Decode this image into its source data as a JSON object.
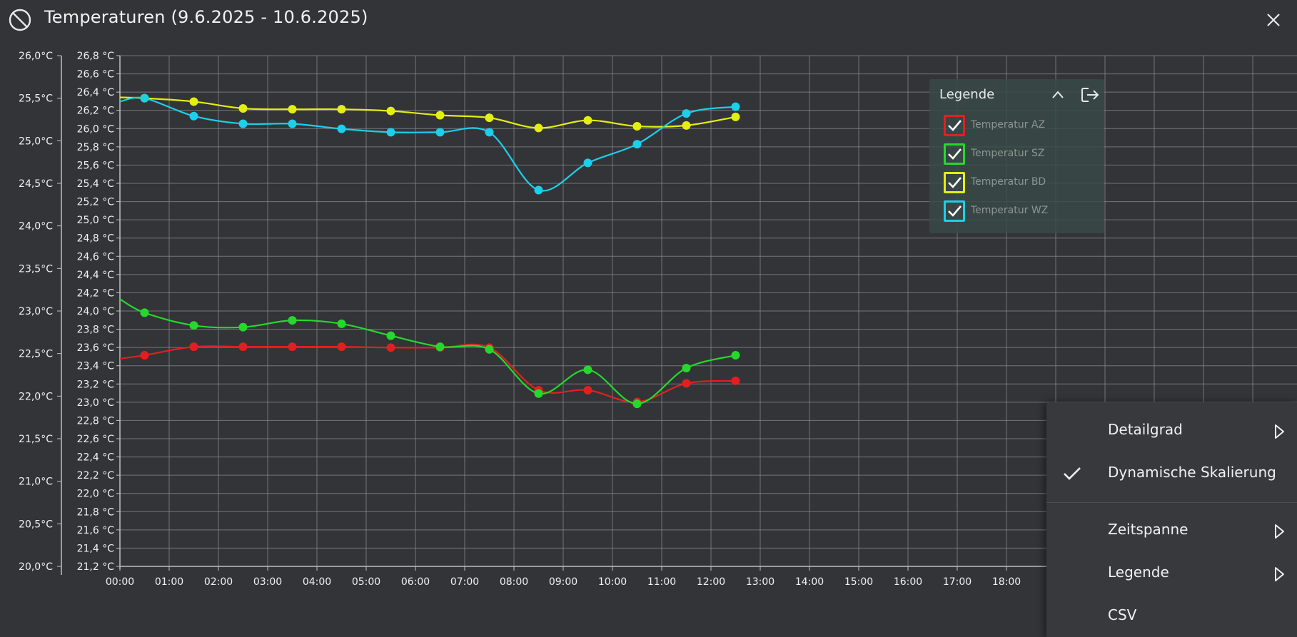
{
  "window": {
    "title": "Temperaturen (9.6.2025 - 10.6.2025)",
    "icons": {
      "left": "ban-icon",
      "close": "close-icon"
    }
  },
  "legend": {
    "title": "Legende",
    "collapse_icon": "chevron-up-icon",
    "export_icon": "export-icon",
    "items": [
      {
        "label": "Temperatur AZ",
        "color": "#e02020",
        "checked": true
      },
      {
        "label": "Temperatur SZ",
        "color": "#25d92c",
        "checked": true
      },
      {
        "label": "Temperatur BD",
        "color": "#e3ee12",
        "checked": true
      },
      {
        "label": "Temperatur WZ",
        "color": "#1ccfeb",
        "checked": true
      }
    ]
  },
  "menu": {
    "items": [
      {
        "label": "Detailgrad",
        "submenu": true,
        "checked": false
      },
      {
        "label": "Dynamische Skalierung",
        "submenu": false,
        "checked": true
      },
      {
        "label": "Zeitspanne",
        "submenu": true,
        "checked": false
      },
      {
        "label": "Legende",
        "submenu": true,
        "checked": false
      },
      {
        "label": "CSV",
        "submenu": false,
        "checked": false
      }
    ]
  },
  "chart_data": {
    "type": "line",
    "x_labels": [
      "00:00",
      "01:00",
      "02:00",
      "03:00",
      "04:00",
      "05:00",
      "06:00",
      "07:00",
      "08:00",
      "09:00",
      "10:00",
      "11:00",
      "12:00",
      "13:00",
      "14:00",
      "15:00",
      "16:00",
      "17:00",
      "18:00"
    ],
    "y_left": {
      "min": 20.0,
      "max": 26.0,
      "step": 0.5,
      "labels": [
        "26,0°C",
        "25,5°C",
        "25,0°C",
        "24,5°C",
        "24,0°C",
        "23,5°C",
        "23,0°C",
        "22,5°C",
        "22,0°C",
        "21,5°C",
        "21,0°C",
        "20,5°C",
        "20,0°C"
      ]
    },
    "y_right": {
      "min": 21.2,
      "max": 26.8,
      "step": 0.2,
      "labels": [
        "26,8 °C",
        "26,6 °C",
        "26,4 °C",
        "26,2 °C",
        "26,0 °C",
        "25,8 °C",
        "25,6 °C",
        "25,4 °C",
        "25,2 °C",
        "25,0 °C",
        "24,8 °C",
        "24,6 °C",
        "24,4 °C",
        "24,2 °C",
        "24,0 °C",
        "23,8 °C",
        "23,6 °C",
        "23,4 °C",
        "23,2 °C",
        "23,0 °C",
        "22,8 °C",
        "22,6 °C",
        "22,4 °C",
        "22,2 °C",
        "22,0 °C",
        "21,8 °C",
        "21,6 °C",
        "21,4 °C",
        "21,2 °C"
      ]
    },
    "grid": true,
    "legend_position": "top-right",
    "series": [
      {
        "name": "Temperatur AZ",
        "color": "#e02020",
        "axis": "left",
        "start": 22.44,
        "x": [
          0.5,
          1.5,
          2.5,
          3.5,
          4.5,
          5.5,
          6.5,
          7.5,
          8.5,
          9.5,
          10.5,
          11.5,
          12.5
        ],
        "y": [
          22.48,
          22.58,
          22.58,
          22.58,
          22.58,
          22.57,
          22.57,
          22.57,
          22.07,
          22.07,
          21.93,
          22.15,
          22.18
        ]
      },
      {
        "name": "Temperatur SZ",
        "color": "#25d92c",
        "axis": "left",
        "start": 23.14,
        "x": [
          0.5,
          1.5,
          2.5,
          3.5,
          4.5,
          5.5,
          6.5,
          7.5,
          8.5,
          9.5,
          10.5,
          11.5,
          12.5
        ],
        "y": [
          22.98,
          22.83,
          22.81,
          22.89,
          22.85,
          22.71,
          22.58,
          22.55,
          22.03,
          22.31,
          21.91,
          22.33,
          22.48
        ]
      },
      {
        "name": "Temperatur BD",
        "color": "#e3ee12",
        "axis": "left",
        "start": 25.51,
        "x": [
          0.5,
          1.5,
          2.5,
          3.5,
          4.5,
          5.5,
          6.5,
          7.5,
          8.5,
          9.5,
          10.5,
          11.5,
          12.5
        ],
        "y": [
          25.5,
          25.46,
          25.38,
          25.37,
          25.37,
          25.35,
          25.3,
          25.27,
          25.15,
          25.24,
          25.17,
          25.18,
          25.28
        ]
      },
      {
        "name": "Temperatur WZ",
        "color": "#1ccfeb",
        "axis": "left",
        "start": 25.46,
        "x": [
          0.5,
          1.5,
          2.5,
          3.5,
          4.5,
          5.5,
          6.5,
          7.5,
          8.5,
          9.5,
          10.5,
          11.5,
          12.5
        ],
        "y": [
          25.5,
          25.29,
          25.2,
          25.2,
          25.14,
          25.1,
          25.1,
          25.1,
          24.42,
          24.74,
          24.96,
          25.32,
          25.4
        ]
      }
    ]
  }
}
